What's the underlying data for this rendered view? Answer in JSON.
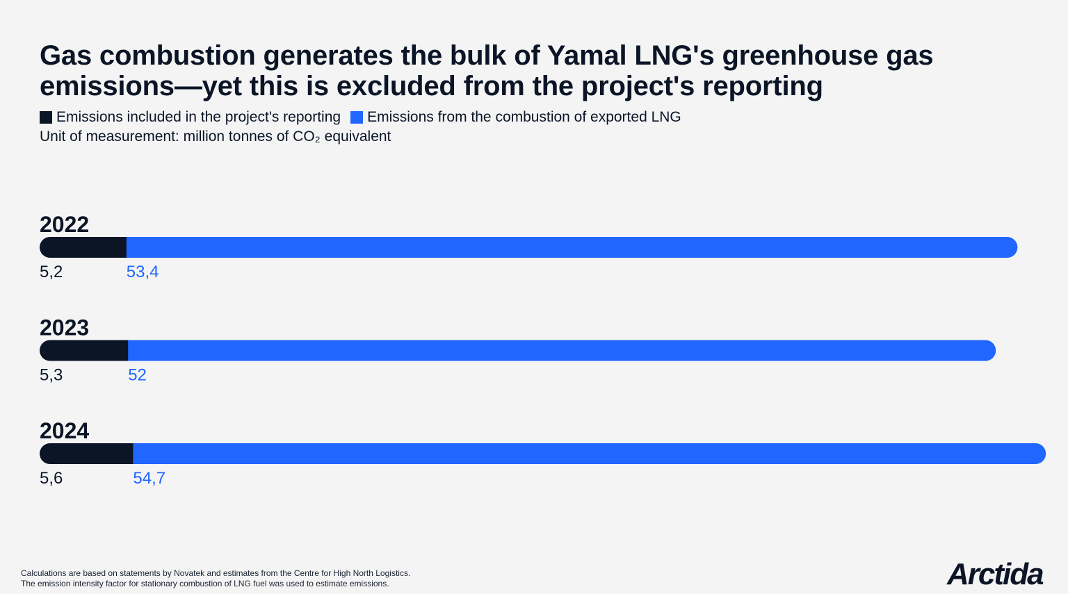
{
  "title": "Gas combustion generates the bulk of Yamal LNG's greenhouse gas emissions—yet this is excluded from the project's reporting",
  "legend": {
    "included": "Emissions included in the project's reporting",
    "combustion": "Emissions from the combustion of exported LNG"
  },
  "unit": "Unit of measurement: million tonnes of CO₂ equivalent",
  "colors": {
    "included": "#0b1526",
    "combustion": "#2066ff",
    "background": "#f4f4f4"
  },
  "chart_data": {
    "type": "bar",
    "orientation": "horizontal",
    "stacked": true,
    "categories": [
      "2022",
      "2023",
      "2024"
    ],
    "series": [
      {
        "name": "Emissions included in the project's reporting",
        "values": [
          5.2,
          5.3,
          5.6
        ],
        "labels": [
          "5,2",
          "5,3",
          "5,6"
        ]
      },
      {
        "name": "Emissions from the combustion of exported LNG",
        "values": [
          53.4,
          52,
          54.7
        ],
        "labels": [
          "53,4",
          "52",
          "54,7"
        ]
      }
    ]
  },
  "footnote": {
    "line1": "Calculations are based on statements by Novatek and estimates from the Centre for High North Logistics.",
    "line2": "The emission intensity factor for stationary combustion of LNG fuel was used to estimate emissions."
  },
  "logo": "Arctida"
}
